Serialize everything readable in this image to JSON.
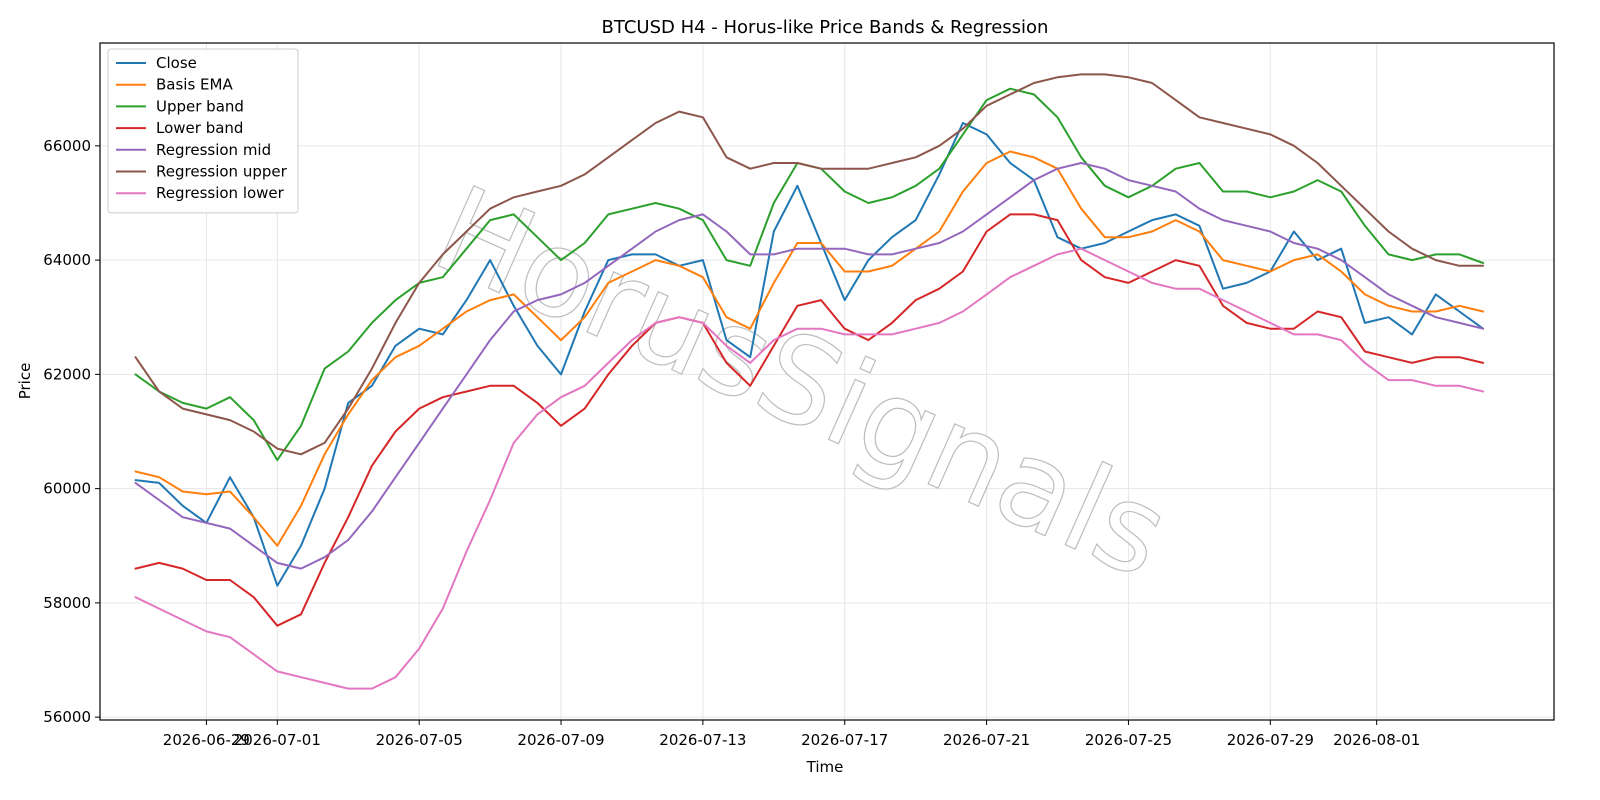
{
  "chart_data": {
    "type": "line",
    "title": "BTCUSD H4 - Horus-like Price Bands & Regression",
    "xlabel": "Time",
    "ylabel": "Price",
    "ylim": [
      55950,
      67800
    ],
    "xlim": [
      "2026-06-26T00:00",
      "2026-08-06T00:00"
    ],
    "grid": true,
    "legend_position": "top-left",
    "watermark": "HorusSignals",
    "xticks": [
      "2026-06-29",
      "2026-07-01",
      "2026-07-05",
      "2026-07-09",
      "2026-07-13",
      "2026-07-17",
      "2026-07-21",
      "2026-07-25",
      "2026-07-29",
      "2026-08-01"
    ],
    "yticks": [
      56000,
      58000,
      60000,
      62000,
      64000,
      66000
    ],
    "x": [
      "2026-06-27T00:00",
      "2026-06-27T16:00",
      "2026-06-28T08:00",
      "2026-06-29T00:00",
      "2026-06-29T16:00",
      "2026-06-30T08:00",
      "2026-07-01T00:00",
      "2026-07-01T16:00",
      "2026-07-02T08:00",
      "2026-07-03T00:00",
      "2026-07-03T16:00",
      "2026-07-04T08:00",
      "2026-07-05T00:00",
      "2026-07-05T16:00",
      "2026-07-06T08:00",
      "2026-07-07T00:00",
      "2026-07-07T16:00",
      "2026-07-08T08:00",
      "2026-07-09T00:00",
      "2026-07-09T16:00",
      "2026-07-10T08:00",
      "2026-07-11T00:00",
      "2026-07-11T16:00",
      "2026-07-12T08:00",
      "2026-07-13T00:00",
      "2026-07-13T16:00",
      "2026-07-14T08:00",
      "2026-07-15T00:00",
      "2026-07-15T16:00",
      "2026-07-16T08:00",
      "2026-07-17T00:00",
      "2026-07-17T16:00",
      "2026-07-18T08:00",
      "2026-07-19T00:00",
      "2026-07-19T16:00",
      "2026-07-20T08:00",
      "2026-07-21T00:00",
      "2026-07-21T16:00",
      "2026-07-22T08:00",
      "2026-07-23T00:00",
      "2026-07-23T16:00",
      "2026-07-24T08:00",
      "2026-07-25T00:00",
      "2026-07-25T16:00",
      "2026-07-26T08:00",
      "2026-07-27T00:00",
      "2026-07-27T16:00",
      "2026-07-28T08:00",
      "2026-07-29T00:00",
      "2026-07-29T16:00",
      "2026-07-30T08:00",
      "2026-07-31T00:00",
      "2026-07-31T16:00",
      "2026-08-01T08:00",
      "2026-08-02T00:00",
      "2026-08-02T16:00",
      "2026-08-03T08:00",
      "2026-08-04T00:00"
    ],
    "series": [
      {
        "name": "Close",
        "color": "#1f77b4",
        "values": [
          60150,
          60100,
          59700,
          59400,
          60200,
          59500,
          58300,
          59000,
          60000,
          61500,
          61800,
          62500,
          62800,
          62700,
          63300,
          64000,
          63200,
          62500,
          62000,
          63100,
          64000,
          64100,
          64100,
          63900,
          64000,
          62600,
          62300,
          64500,
          65300,
          64300,
          63300,
          64000,
          64400,
          64700,
          65500,
          66400,
          66200,
          65700,
          65400,
          64400,
          64200,
          64300,
          64500,
          64700,
          64800,
          64600,
          63500,
          63600,
          63800,
          64500,
          64000,
          64200,
          62900,
          63000,
          62700,
          63400,
          63100,
          62800
        ]
      },
      {
        "name": "Basis EMA",
        "color": "#ff7f0e",
        "values": [
          60300,
          60200,
          59950,
          59900,
          59950,
          59500,
          59000,
          59700,
          60600,
          61300,
          61900,
          62300,
          62500,
          62800,
          63100,
          63300,
          63400,
          63000,
          62600,
          63000,
          63600,
          63800,
          64000,
          63900,
          63700,
          63000,
          62800,
          63600,
          64300,
          64300,
          63800,
          63800,
          63900,
          64200,
          64500,
          65200,
          65700,
          65900,
          65800,
          65600,
          64900,
          64400,
          64400,
          64500,
          64700,
          64500,
          64000,
          63900,
          63800,
          64000,
          64100,
          63800,
          63400,
          63200,
          63100,
          63100,
          63200,
          63100
        ]
      },
      {
        "name": "Upper band",
        "color": "#2ca02c",
        "values": [
          62000,
          61700,
          61500,
          61400,
          61600,
          61200,
          60500,
          61100,
          62100,
          62400,
          62900,
          63300,
          63600,
          63700,
          64200,
          64700,
          64800,
          64400,
          64000,
          64300,
          64800,
          64900,
          65000,
          64900,
          64700,
          64000,
          63900,
          65000,
          65700,
          65600,
          65200,
          65000,
          65100,
          65300,
          65600,
          66200,
          66800,
          67000,
          66900,
          66500,
          65800,
          65300,
          65100,
          65300,
          65600,
          65700,
          65200,
          65200,
          65100,
          65200,
          65400,
          65200,
          64600,
          64100,
          64000,
          64100,
          64100,
          63950
        ]
      },
      {
        "name": "Lower band",
        "color": "#d62728",
        "values": [
          58600,
          58700,
          58600,
          58400,
          58400,
          58100,
          57600,
          57800,
          58700,
          59500,
          60400,
          61000,
          61400,
          61600,
          61700,
          61800,
          61800,
          61500,
          61100,
          61400,
          62000,
          62500,
          62900,
          63000,
          62900,
          62200,
          61800,
          62500,
          63200,
          63300,
          62800,
          62600,
          62900,
          63300,
          63500,
          63800,
          64500,
          64800,
          64800,
          64700,
          64000,
          63700,
          63600,
          63800,
          64000,
          63900,
          63200,
          62900,
          62800,
          62800,
          63100,
          63000,
          62400,
          62300,
          62200,
          62300,
          62300,
          62200
        ]
      },
      {
        "name": "Regression mid",
        "color": "#9467bd",
        "values": [
          60100,
          59800,
          59500,
          59400,
          59300,
          59000,
          58700,
          58600,
          58800,
          59100,
          59600,
          60200,
          60800,
          61400,
          62000,
          62600,
          63100,
          63300,
          63400,
          63600,
          63900,
          64200,
          64500,
          64700,
          64800,
          64500,
          64100,
          64100,
          64200,
          64200,
          64200,
          64100,
          64100,
          64200,
          64300,
          64500,
          64800,
          65100,
          65400,
          65600,
          65700,
          65600,
          65400,
          65300,
          65200,
          64900,
          64700,
          64600,
          64500,
          64300,
          64200,
          64000,
          63700,
          63400,
          63200,
          63000,
          62900,
          62800
        ]
      },
      {
        "name": "Regression upper",
        "color": "#8c564b",
        "values": [
          62300,
          61700,
          61400,
          61300,
          61200,
          61000,
          60700,
          60600,
          60800,
          61400,
          62100,
          62900,
          63600,
          64100,
          64500,
          64900,
          65100,
          65200,
          65300,
          65500,
          65800,
          66100,
          66400,
          66600,
          66500,
          65800,
          65600,
          65700,
          65700,
          65600,
          65600,
          65600,
          65700,
          65800,
          66000,
          66300,
          66700,
          66900,
          67100,
          67200,
          67250,
          67250,
          67200,
          67100,
          66800,
          66500,
          66400,
          66300,
          66200,
          66000,
          65700,
          65300,
          64900,
          64500,
          64200,
          64000,
          63900,
          63900
        ]
      },
      {
        "name": "Regression lower",
        "color": "#e377c2",
        "values": [
          58100,
          57900,
          57700,
          57500,
          57400,
          57100,
          56800,
          56700,
          56600,
          56500,
          56500,
          56700,
          57200,
          57900,
          58900,
          59800,
          60800,
          61300,
          61600,
          61800,
          62200,
          62600,
          62900,
          63000,
          62900,
          62500,
          62200,
          62600,
          62800,
          62800,
          62700,
          62700,
          62700,
          62800,
          62900,
          63100,
          63400,
          63700,
          63900,
          64100,
          64200,
          64000,
          63800,
          63600,
          63500,
          63500,
          63300,
          63100,
          62900,
          62700,
          62700,
          62600,
          62200,
          61900,
          61900,
          61800,
          61800,
          61700
        ]
      }
    ]
  }
}
